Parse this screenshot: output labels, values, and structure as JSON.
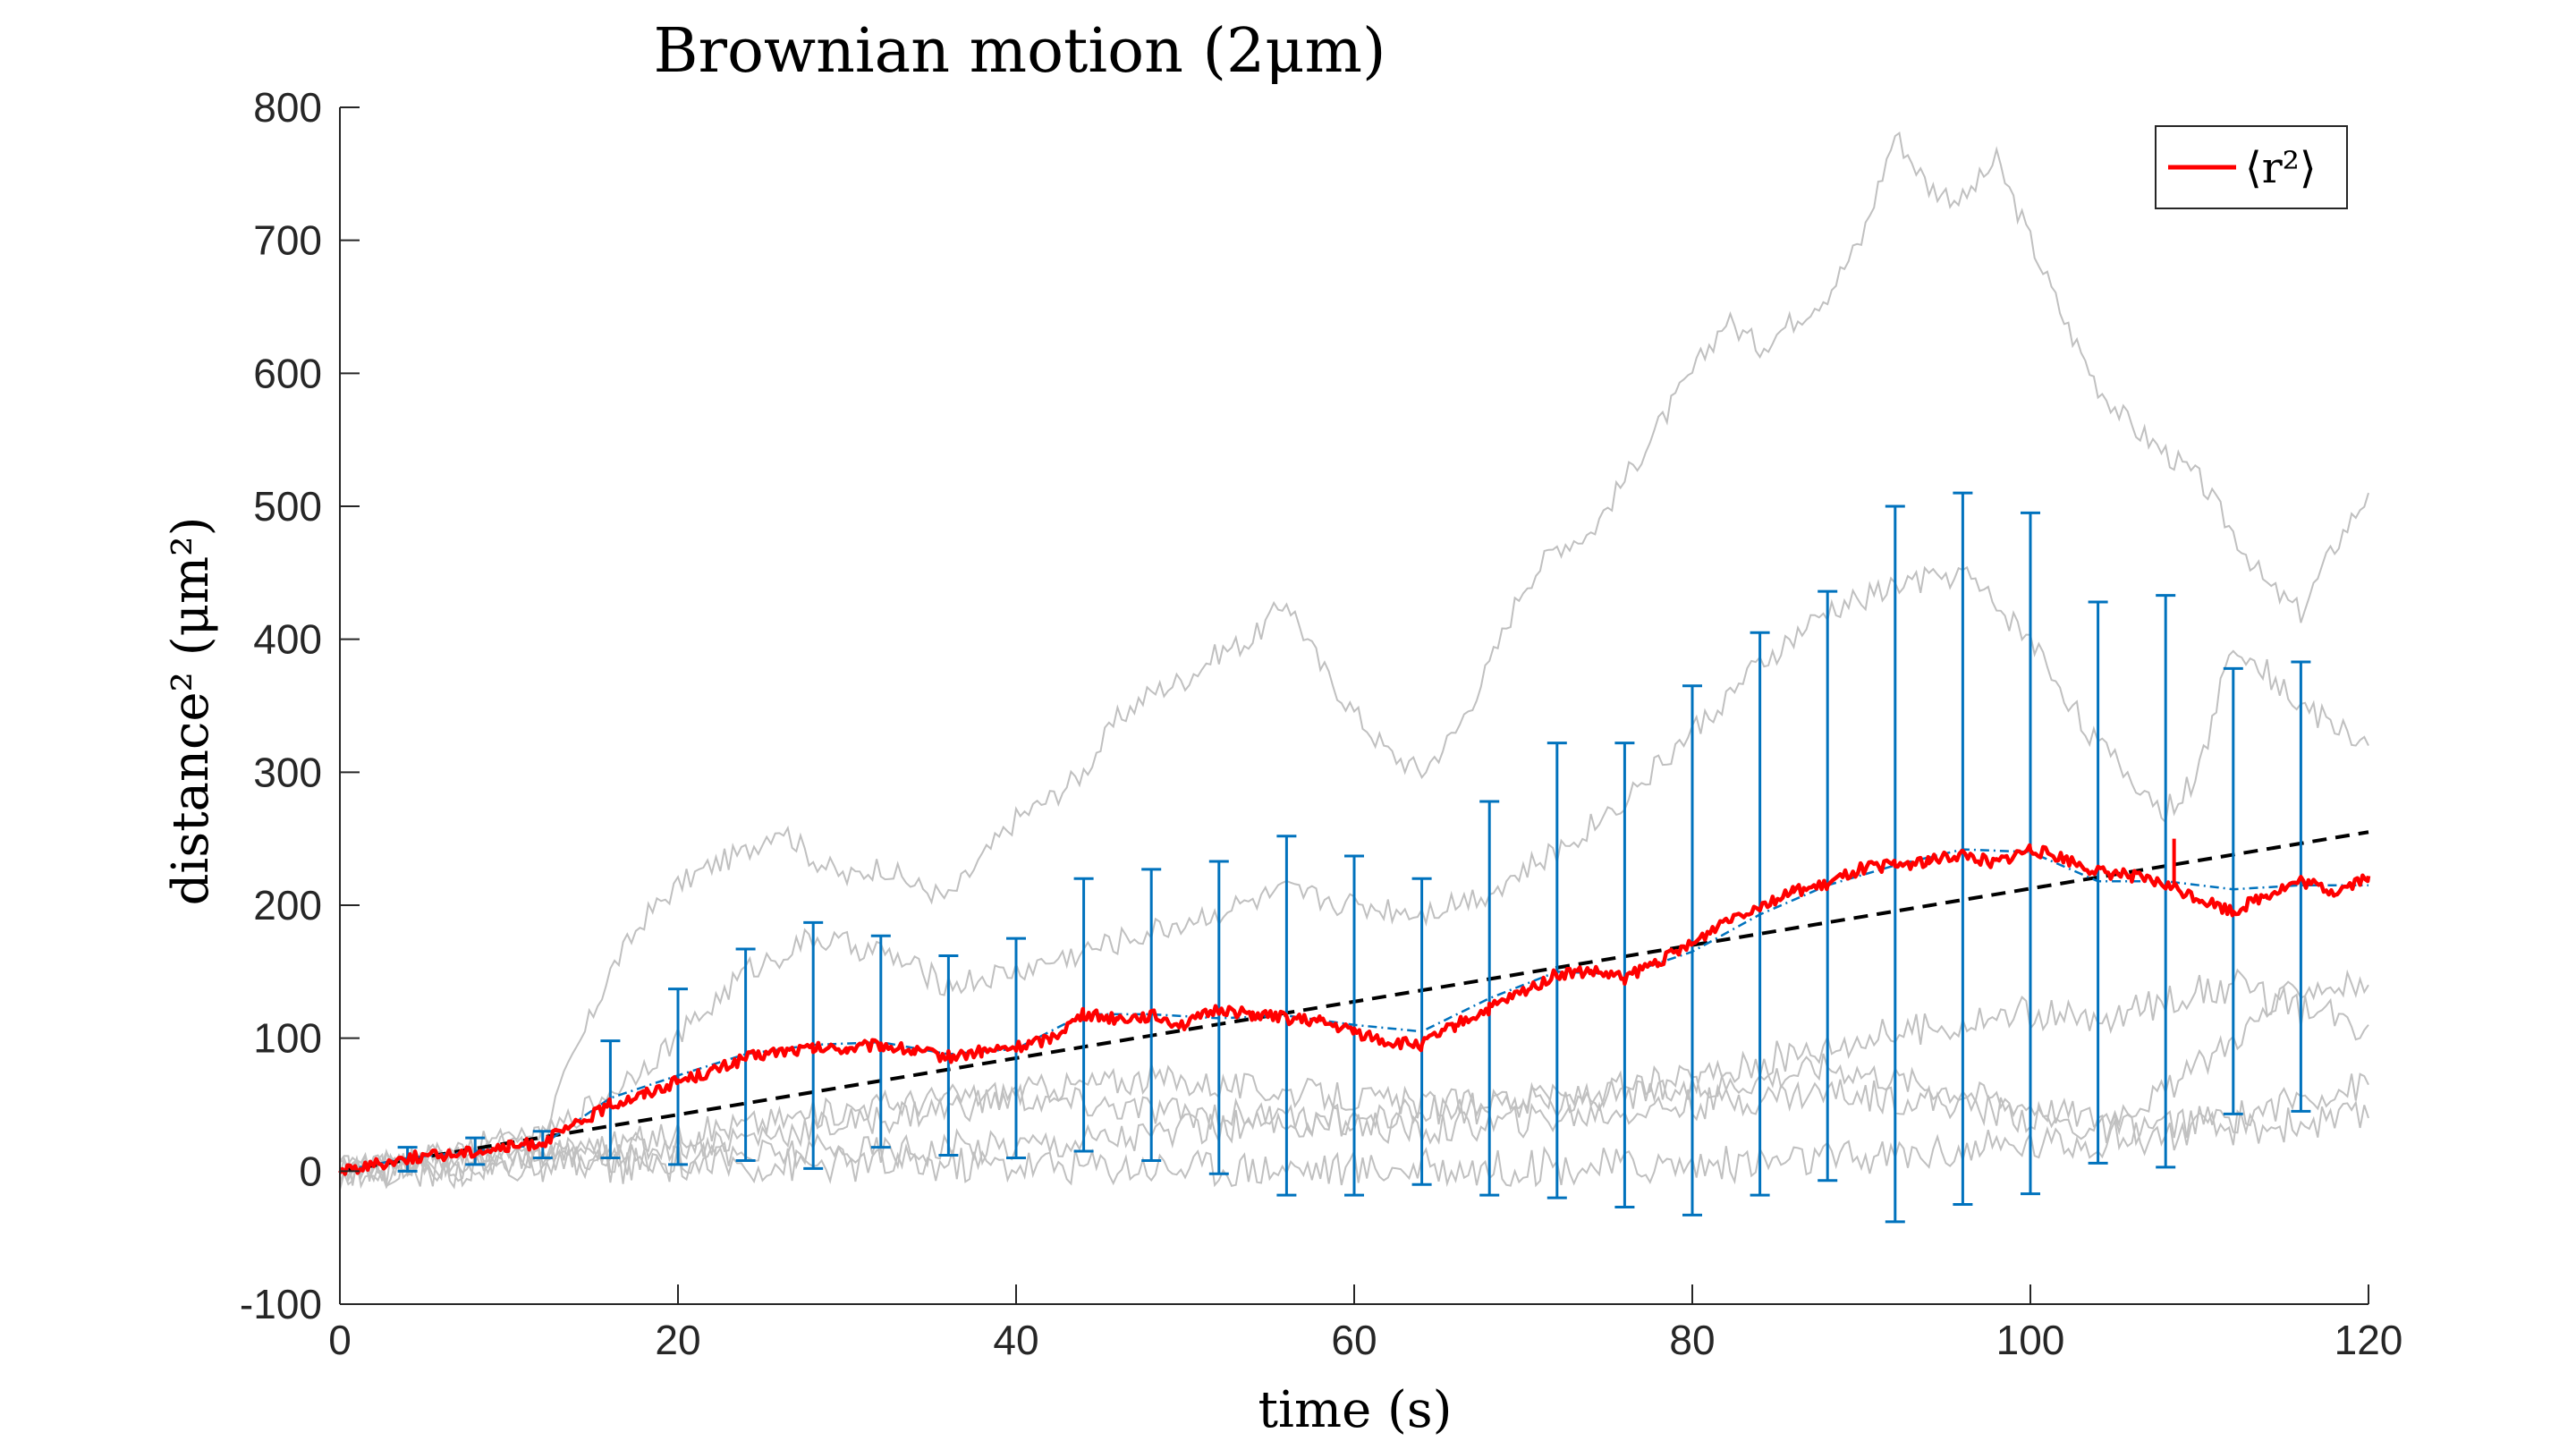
{
  "chart_data": {
    "type": "line",
    "title": "Brownian motion (2μm)",
    "xlabel": "time (s)",
    "ylabel": "distance² (μm²)",
    "xlim": [
      0,
      120
    ],
    "ylim": [
      -100,
      800
    ],
    "x_ticks": [
      "0",
      "20",
      "40",
      "60",
      "80",
      "100",
      "120"
    ],
    "y_ticks": [
      "-100",
      "0",
      "100",
      "200",
      "300",
      "400",
      "500",
      "600",
      "700",
      "800"
    ],
    "grid": false,
    "legend": {
      "position": "top-right",
      "entries": [
        "⟨r²⟩"
      ]
    },
    "colors": {
      "mean": "#ff0000",
      "fit": "#000000",
      "smoothed": "#0072bd",
      "errorbar": "#0072bd",
      "trajectory": "#c0c0c0"
    },
    "mean_series": {
      "name": "⟨r²⟩",
      "x": [
        0,
        2,
        4,
        6,
        8,
        10,
        12,
        14,
        16,
        18,
        20,
        22,
        24,
        26,
        28,
        30,
        32,
        34,
        36,
        38,
        40,
        42,
        44,
        46,
        48,
        50,
        52,
        54,
        56,
        58,
        60,
        62,
        64,
        66,
        68,
        70,
        72,
        74,
        76,
        78,
        80,
        82,
        84,
        86,
        88,
        90,
        92,
        94,
        96,
        98,
        100,
        102,
        104,
        106,
        108,
        110,
        112,
        114,
        116,
        118,
        120
      ],
      "y": [
        0,
        5,
        10,
        12,
        15,
        18,
        22,
        35,
        50,
        58,
        68,
        75,
        85,
        90,
        92,
        92,
        95,
        90,
        86,
        90,
        93,
        100,
        118,
        115,
        117,
        110,
        122,
        118,
        115,
        112,
        105,
        97,
        95,
        110,
        122,
        135,
        148,
        150,
        145,
        158,
        170,
        190,
        200,
        210,
        215,
        228,
        230,
        233,
        238,
        232,
        242,
        235,
        225,
        222,
        215,
        205,
        195,
        208,
        218,
        210,
        222
      ]
    },
    "error_bars": {
      "x": [
        4,
        8,
        12,
        16,
        20,
        24,
        28,
        32,
        36,
        40,
        44,
        48,
        52,
        56,
        60,
        64,
        68,
        72,
        76,
        80,
        84,
        88,
        92,
        96,
        100,
        104,
        108,
        112,
        116
      ],
      "mean": [
        10,
        15,
        20,
        55,
        72,
        88,
        95,
        97,
        88,
        92,
        118,
        118,
        115,
        117,
        110,
        105,
        130,
        150,
        148,
        165,
        193,
        215,
        230,
        242,
        240,
        218,
        218,
        212,
        215
      ],
      "lower": [
        0,
        5,
        10,
        10,
        5,
        8,
        2,
        18,
        12,
        10,
        15,
        8,
        -2,
        -18,
        -18,
        -10,
        -18,
        -20,
        -27,
        -33,
        -18,
        -7,
        -38,
        -25,
        -17,
        6,
        3,
        43,
        45
      ],
      "upper": [
        18,
        25,
        30,
        98,
        137,
        167,
        187,
        177,
        162,
        175,
        220,
        227,
        233,
        252,
        237,
        220,
        278,
        322,
        322,
        365,
        405,
        436,
        500,
        510,
        495,
        428,
        433,
        378,
        383
      ]
    },
    "fit_line": {
      "x": [
        0,
        120
      ],
      "y": [
        0,
        255
      ]
    },
    "trajectories": [
      {
        "x": [
          0,
          4,
          8,
          12,
          14,
          16,
          18,
          20,
          22,
          24,
          26,
          28,
          30,
          32,
          34,
          36,
          38,
          40,
          42,
          44,
          46,
          48,
          50,
          52,
          54,
          56,
          58,
          60,
          62,
          64,
          66,
          68,
          70,
          72,
          74,
          76,
          78,
          80,
          82,
          84,
          86,
          88,
          90,
          92,
          94,
          96,
          98,
          100,
          102,
          104,
          106,
          108,
          110,
          112,
          114,
          116,
          118,
          120
        ],
        "y": [
          0,
          10,
          20,
          30,
          90,
          150,
          190,
          215,
          230,
          240,
          260,
          235,
          220,
          230,
          215,
          205,
          235,
          265,
          280,
          300,
          340,
          360,
          370,
          390,
          400,
          430,
          380,
          345,
          315,
          300,
          330,
          380,
          440,
          470,
          480,
          520,
          560,
          600,
          640,
          620,
          640,
          660,
          700,
          780,
          740,
          730,
          760,
          700,
          640,
          590,
          560,
          540,
          520,
          480,
          440,
          420,
          470,
          510
        ]
      },
      {
        "x": [
          0,
          4,
          8,
          12,
          16,
          20,
          24,
          28,
          32,
          36,
          40,
          44,
          48,
          52,
          56,
          60,
          64,
          68,
          72,
          76,
          80,
          84,
          88,
          92,
          96,
          100,
          104,
          108,
          110,
          112,
          116,
          120
        ],
        "y": [
          0,
          8,
          15,
          25,
          60,
          100,
          150,
          175,
          165,
          140,
          150,
          165,
          180,
          195,
          210,
          200,
          195,
          210,
          240,
          280,
          330,
          380,
          420,
          440,
          450,
          400,
          320,
          270,
          300,
          400,
          350,
          320
        ]
      },
      {
        "x": [
          0,
          8,
          16,
          24,
          32,
          40,
          48,
          56,
          64,
          72,
          80,
          88,
          96,
          104,
          108,
          112,
          116,
          120
        ],
        "y": [
          0,
          10,
          20,
          35,
          50,
          60,
          70,
          60,
          50,
          55,
          60,
          80,
          60,
          40,
          60,
          100,
          140,
          140
        ]
      },
      {
        "x": [
          0,
          8,
          16,
          24,
          32,
          40,
          48,
          56,
          64,
          72,
          80,
          88,
          96,
          104,
          112,
          116,
          120
        ],
        "y": [
          0,
          5,
          15,
          25,
          40,
          55,
          45,
          40,
          30,
          40,
          50,
          60,
          50,
          30,
          40,
          55,
          65
        ]
      },
      {
        "x": [
          0,
          10,
          20,
          30,
          40,
          50,
          60,
          70,
          80,
          90,
          100,
          104,
          108,
          112,
          116,
          120
        ],
        "y": [
          0,
          5,
          10,
          15,
          20,
          30,
          40,
          50,
          70,
          100,
          120,
          110,
          130,
          140,
          120,
          110
        ]
      },
      {
        "x": [
          0,
          10,
          20,
          30,
          40,
          50,
          60,
          70,
          80,
          90,
          100,
          110,
          120
        ],
        "y": [
          0,
          3,
          5,
          5,
          5,
          3,
          2,
          3,
          5,
          10,
          20,
          30,
          40
        ]
      }
    ]
  }
}
